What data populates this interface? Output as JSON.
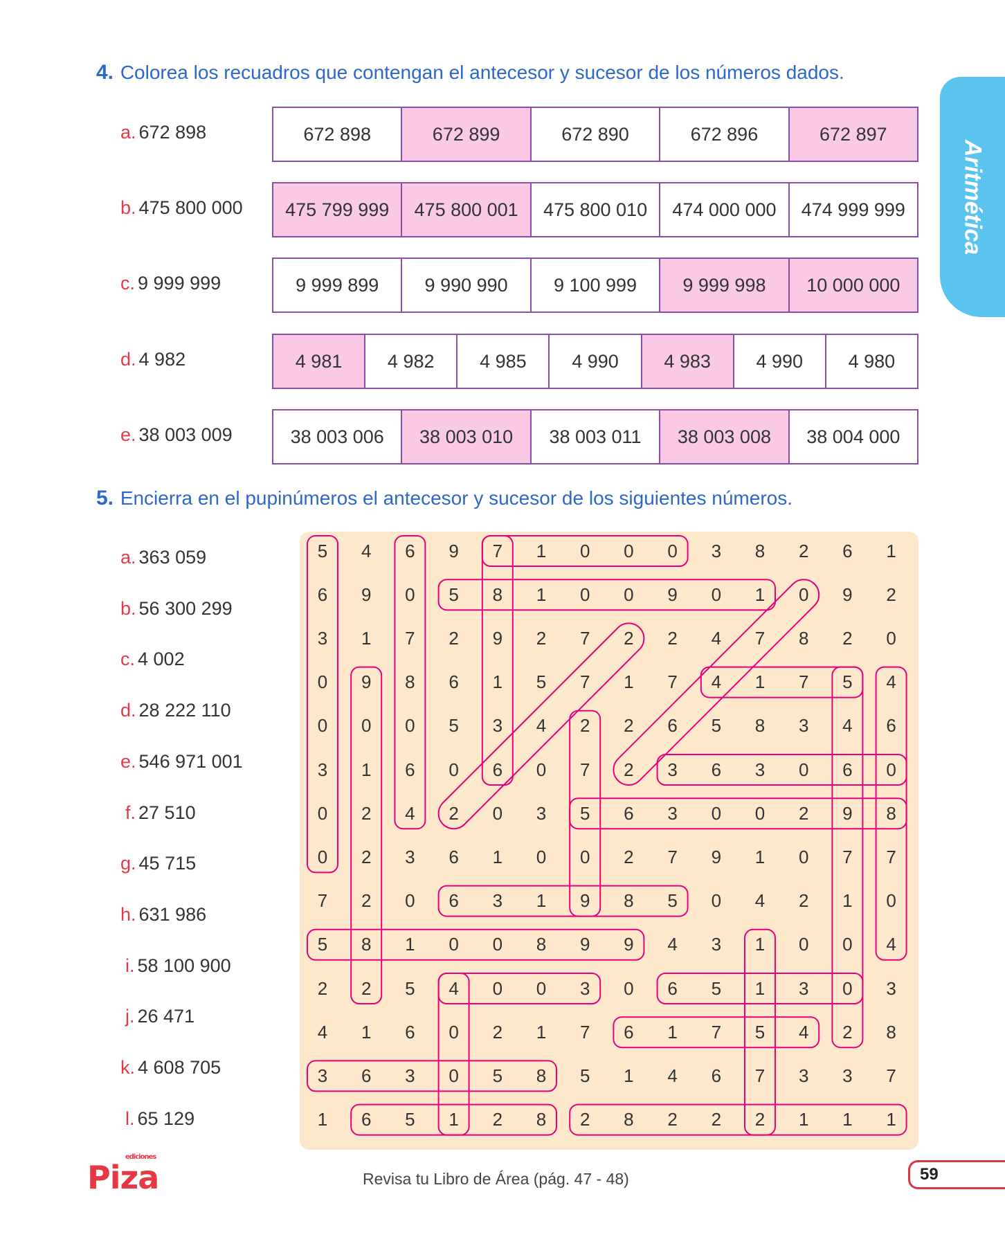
{
  "exercise4": {
    "number": "4.",
    "instruction": "Colorea los recuadros que contengan el antecesor y sucesor de los números dados.",
    "rows": [
      {
        "letter": "a.",
        "value": "672 898",
        "options": [
          {
            "text": "672 898",
            "hl": false
          },
          {
            "text": "672 899",
            "hl": true
          },
          {
            "text": "672 890",
            "hl": false
          },
          {
            "text": "672 896",
            "hl": false
          },
          {
            "text": "672 897",
            "hl": true
          }
        ]
      },
      {
        "letter": "b.",
        "value": "475 800 000",
        "options": [
          {
            "text": "475 799 999",
            "hl": true
          },
          {
            "text": "475 800 001",
            "hl": true
          },
          {
            "text": "475 800 010",
            "hl": false
          },
          {
            "text": "474 000 000",
            "hl": false
          },
          {
            "text": "474 999 999",
            "hl": false
          }
        ]
      },
      {
        "letter": "c.",
        "value": "9 999 999",
        "options": [
          {
            "text": "9 999 899",
            "hl": false
          },
          {
            "text": "9 990 990",
            "hl": false
          },
          {
            "text": "9 100 999",
            "hl": false
          },
          {
            "text": "9 999 998",
            "hl": true
          },
          {
            "text": "10 000 000",
            "hl": true
          }
        ]
      },
      {
        "letter": "d.",
        "value": "4 982",
        "options": [
          {
            "text": "4 981",
            "hl": true
          },
          {
            "text": "4 982",
            "hl": false
          },
          {
            "text": "4 985",
            "hl": false
          },
          {
            "text": "4 990",
            "hl": false
          },
          {
            "text": "4 983",
            "hl": true
          },
          {
            "text": "4 990",
            "hl": false
          },
          {
            "text": "4 980",
            "hl": false
          }
        ]
      },
      {
        "letter": "e.",
        "value": "38 003 009",
        "options": [
          {
            "text": "38 003 006",
            "hl": false
          },
          {
            "text": "38 003 010",
            "hl": true
          },
          {
            "text": "38 003 011",
            "hl": false
          },
          {
            "text": "38 003 008",
            "hl": true
          },
          {
            "text": "38 004 000",
            "hl": false
          }
        ]
      }
    ]
  },
  "exercise5": {
    "number": "5.",
    "instruction": "Encierra en el pupinúmeros el antecesor y sucesor de los siguientes números.",
    "items": [
      {
        "letter": "a.",
        "value": "363 059"
      },
      {
        "letter": "b.",
        "value": "56 300 299"
      },
      {
        "letter": "c.",
        "value": "4 002"
      },
      {
        "letter": "d.",
        "value": "28 222 110"
      },
      {
        "letter": "e.",
        "value": "546 971 001"
      },
      {
        "letter": "f.",
        "value": "27 510"
      },
      {
        "letter": "g.",
        "value": "45 715"
      },
      {
        "letter": "h.",
        "value": "631 986"
      },
      {
        "letter": "i.",
        "value": "58 100 900"
      },
      {
        "letter": "j.",
        "value": "26 471"
      },
      {
        "letter": "k.",
        "value": "4 608 705"
      },
      {
        "letter": "l.",
        "value": "65 129"
      }
    ],
    "grid": [
      [
        "5",
        "4",
        "6",
        "9",
        "7",
        "1",
        "0",
        "0",
        "0",
        "3",
        "8",
        "2",
        "6",
        "1"
      ],
      [
        "6",
        "9",
        "0",
        "5",
        "8",
        "1",
        "0",
        "0",
        "9",
        "0",
        "1",
        "0",
        "9",
        "2"
      ],
      [
        "3",
        "1",
        "7",
        "2",
        "9",
        "2",
        "7",
        "2",
        "2",
        "4",
        "7",
        "8",
        "2",
        "0"
      ],
      [
        "0",
        "9",
        "8",
        "6",
        "1",
        "5",
        "7",
        "1",
        "7",
        "4",
        "1",
        "7",
        "5",
        "4"
      ],
      [
        "0",
        "0",
        "0",
        "5",
        "3",
        "4",
        "2",
        "2",
        "6",
        "5",
        "8",
        "3",
        "4",
        "6"
      ],
      [
        "3",
        "1",
        "6",
        "0",
        "6",
        "0",
        "7",
        "2",
        "3",
        "6",
        "3",
        "0",
        "6",
        "0"
      ],
      [
        "0",
        "2",
        "4",
        "2",
        "0",
        "3",
        "5",
        "6",
        "3",
        "0",
        "0",
        "2",
        "9",
        "8"
      ],
      [
        "0",
        "2",
        "3",
        "6",
        "1",
        "0",
        "0",
        "2",
        "7",
        "9",
        "1",
        "0",
        "7",
        "7"
      ],
      [
        "7",
        "2",
        "0",
        "6",
        "3",
        "1",
        "9",
        "8",
        "5",
        "0",
        "4",
        "2",
        "1",
        "0"
      ],
      [
        "5",
        "8",
        "1",
        "0",
        "0",
        "8",
        "9",
        "9",
        "4",
        "3",
        "1",
        "0",
        "0",
        "4"
      ],
      [
        "2",
        "2",
        "5",
        "4",
        "0",
        "0",
        "3",
        "0",
        "6",
        "5",
        "1",
        "3",
        "0",
        "3"
      ],
      [
        "4",
        "1",
        "6",
        "0",
        "2",
        "1",
        "7",
        "6",
        "1",
        "7",
        "5",
        "4",
        "2",
        "8"
      ],
      [
        "3",
        "6",
        "3",
        "0",
        "5",
        "8",
        "5",
        "1",
        "4",
        "6",
        "7",
        "3",
        "3",
        "7"
      ],
      [
        "1",
        "6",
        "5",
        "1",
        "2",
        "8",
        "2",
        "8",
        "2",
        "2",
        "2",
        "1",
        "1",
        "1"
      ]
    ],
    "loops": [
      {
        "dir": "h",
        "r": 0,
        "c1": 4,
        "c2": 8
      },
      {
        "dir": "v",
        "c": 0,
        "r1": 0,
        "r2": 7
      },
      {
        "dir": "v",
        "c": 2,
        "r1": 0,
        "r2": 6
      },
      {
        "dir": "v",
        "c": 4,
        "r1": 0,
        "r2": 5
      },
      {
        "dir": "h",
        "r": 1,
        "c1": 3,
        "c2": 10
      },
      {
        "dir": "d",
        "r1": 1,
        "c1": 11,
        "r2": 5,
        "c2": 7
      },
      {
        "dir": "d",
        "r1": 2,
        "c1": 7,
        "r2": 6,
        "c2": 3
      },
      {
        "dir": "h",
        "r": 3,
        "c1": 9,
        "c2": 12
      },
      {
        "dir": "v",
        "c": 12,
        "r1": 3,
        "r2": 11
      },
      {
        "dir": "v",
        "c": 13,
        "r1": 3,
        "r2": 9
      },
      {
        "dir": "v",
        "c": 1,
        "r1": 3,
        "r2": 10
      },
      {
        "dir": "v",
        "c": 6,
        "r1": 4,
        "r2": 8
      },
      {
        "dir": "h",
        "r": 5,
        "c1": 8,
        "c2": 13
      },
      {
        "dir": "h",
        "r": 6,
        "c1": 6,
        "c2": 13
      },
      {
        "dir": "h",
        "r": 8,
        "c1": 3,
        "c2": 8
      },
      {
        "dir": "h",
        "r": 9,
        "c1": 0,
        "c2": 7
      },
      {
        "dir": "v",
        "c": 10,
        "r1": 9,
        "r2": 13
      },
      {
        "dir": "h",
        "r": 10,
        "c1": 3,
        "c2": 6
      },
      {
        "dir": "v",
        "c": 3,
        "r1": 10,
        "r2": 13
      },
      {
        "dir": "h",
        "r": 10,
        "c1": 8,
        "c2": 12
      },
      {
        "dir": "h",
        "r": 11,
        "c1": 7,
        "c2": 11
      },
      {
        "dir": "h",
        "r": 12,
        "c1": 0,
        "c2": 5
      },
      {
        "dir": "h",
        "r": 13,
        "c1": 1,
        "c2": 5
      },
      {
        "dir": "h",
        "r": 13,
        "c1": 6,
        "c2": 13
      }
    ]
  },
  "side_tab": {
    "label": "Aritmética"
  },
  "footer": {
    "publisher_main": "Piza",
    "publisher_small": "ediciones",
    "reference": "Revisa tu Libro de Área (pág. 47 - 48)",
    "page_number": "59"
  },
  "colors": {
    "highlight": "#f9c9e6",
    "loop": "#e6007e",
    "tab": "#5bc4ee",
    "grid_bg": "#fde8cb"
  }
}
